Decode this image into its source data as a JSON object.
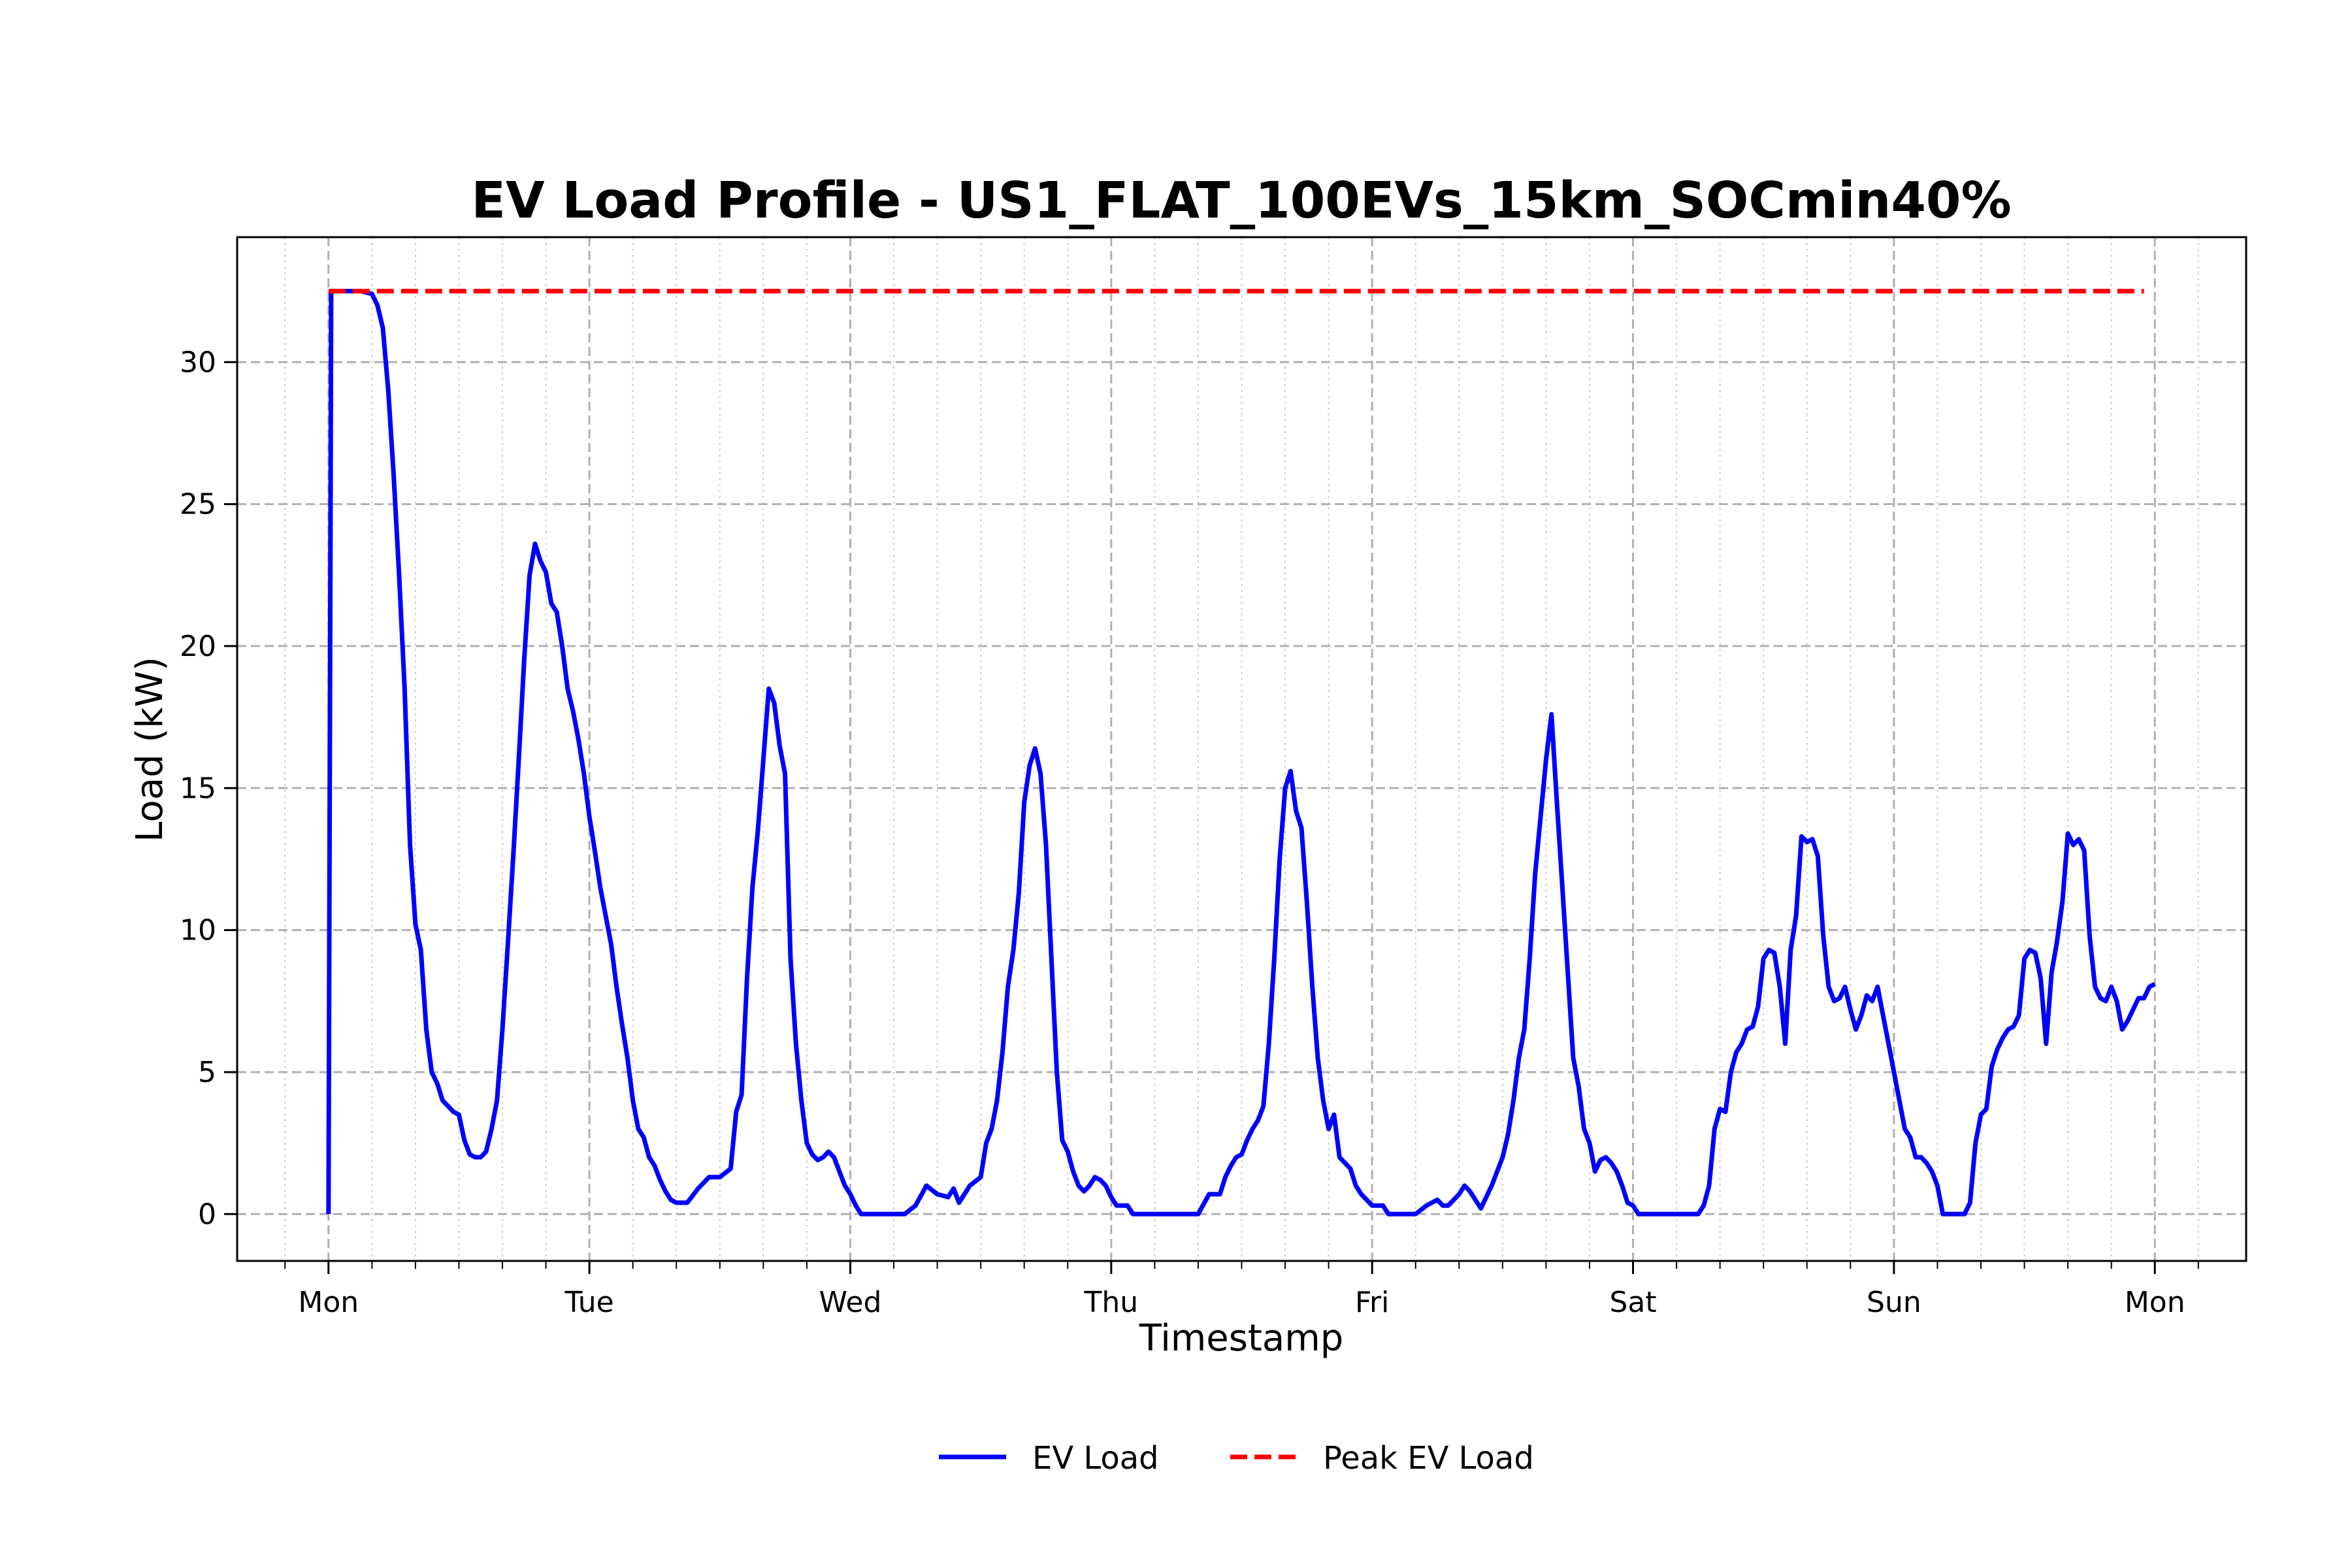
{
  "chart_data": {
    "type": "line",
    "title": "EV Load Profile - US1_FLAT_100EVs_15km_SOCmin40%",
    "xlabel": "Timestamp",
    "ylabel": "Load (kW)",
    "x_unit": "hours from Monday 00:00",
    "xlim": [
      -8.4,
      176.4
    ],
    "ylim": [
      -1.65,
      34.4
    ],
    "x_ticks": [
      {
        "x": 0,
        "label": "Mon"
      },
      {
        "x": 24,
        "label": "Tue"
      },
      {
        "x": 48,
        "label": "Wed"
      },
      {
        "x": 72,
        "label": "Thu"
      },
      {
        "x": 96,
        "label": "Fri"
      },
      {
        "x": 120,
        "label": "Sat"
      },
      {
        "x": 144,
        "label": "Sun"
      },
      {
        "x": 168,
        "label": "Mon"
      }
    ],
    "y_ticks": [
      0,
      5,
      10,
      15,
      20,
      25,
      30
    ],
    "grid": true,
    "legend_position": "bottom-center",
    "series": [
      {
        "name": "EV Load",
        "color": "#0000ff",
        "style": "solid",
        "points": [
          [
            0,
            0
          ],
          [
            0.25,
            32.5
          ],
          [
            1,
            32.5
          ],
          [
            2,
            32.5
          ],
          [
            3,
            32.5
          ],
          [
            4,
            32.4
          ],
          [
            4.5,
            32
          ],
          [
            5,
            31.2
          ],
          [
            5.5,
            29
          ],
          [
            6,
            26
          ],
          [
            6.5,
            22.5
          ],
          [
            7,
            18.5
          ],
          [
            7.5,
            13
          ],
          [
            8,
            10.2
          ],
          [
            8.5,
            9.3
          ],
          [
            9,
            6.5
          ],
          [
            9.5,
            5
          ],
          [
            10,
            4.6
          ],
          [
            10.5,
            4
          ],
          [
            11,
            3.8
          ],
          [
            11.5,
            3.6
          ],
          [
            12,
            3.5
          ],
          [
            12.5,
            2.6
          ],
          [
            13,
            2.1
          ],
          [
            13.5,
            2
          ],
          [
            14,
            2
          ],
          [
            14.5,
            2.2
          ],
          [
            15,
            3
          ],
          [
            15.5,
            4
          ],
          [
            16,
            6.5
          ],
          [
            16.5,
            9.5
          ],
          [
            17,
            12.6
          ],
          [
            17.5,
            16
          ],
          [
            18,
            19.5
          ],
          [
            18.5,
            22.5
          ],
          [
            19,
            23.6
          ],
          [
            19.5,
            23
          ],
          [
            20,
            22.6
          ],
          [
            20.5,
            21.5
          ],
          [
            21,
            21.2
          ],
          [
            21.5,
            20
          ],
          [
            22,
            18.5
          ],
          [
            22.5,
            17.7
          ],
          [
            23,
            16.7
          ],
          [
            23.5,
            15.5
          ],
          [
            24,
            14
          ],
          [
            24.5,
            12.8
          ],
          [
            25,
            11.5
          ],
          [
            25.5,
            10.5
          ],
          [
            26,
            9.5
          ],
          [
            26.5,
            8
          ],
          [
            27,
            6.7
          ],
          [
            27.5,
            5.5
          ],
          [
            28,
            4
          ],
          [
            28.5,
            3
          ],
          [
            29,
            2.7
          ],
          [
            29.5,
            2
          ],
          [
            30,
            1.7
          ],
          [
            30.5,
            1.2
          ],
          [
            31,
            0.8
          ],
          [
            31.5,
            0.5
          ],
          [
            32,
            0.4
          ],
          [
            33,
            0.4
          ],
          [
            34,
            0.9
          ],
          [
            35,
            1.3
          ],
          [
            36,
            1.3
          ],
          [
            37,
            1.6
          ],
          [
            37.5,
            3.6
          ],
          [
            38,
            4.2
          ],
          [
            38.5,
            8.3
          ],
          [
            39,
            11.5
          ],
          [
            39.5,
            13.5
          ],
          [
            40,
            16
          ],
          [
            40.5,
            18.5
          ],
          [
            41,
            18
          ],
          [
            41.5,
            16.5
          ],
          [
            42,
            15.5
          ],
          [
            42.5,
            9
          ],
          [
            43,
            6
          ],
          [
            43.5,
            4
          ],
          [
            44,
            2.5
          ],
          [
            44.5,
            2.1
          ],
          [
            45,
            1.9
          ],
          [
            45.5,
            2
          ],
          [
            46,
            2.2
          ],
          [
            46.5,
            2
          ],
          [
            47,
            1.5
          ],
          [
            47.5,
            1
          ],
          [
            48,
            0.7
          ],
          [
            48.5,
            0.3
          ],
          [
            49,
            0
          ],
          [
            50,
            0
          ],
          [
            51,
            0
          ],
          [
            52,
            0
          ],
          [
            53,
            0
          ],
          [
            54,
            0.3
          ],
          [
            55,
            1
          ],
          [
            56,
            0.7
          ],
          [
            57,
            0.6
          ],
          [
            57.5,
            0.9
          ],
          [
            58,
            0.4
          ],
          [
            59,
            1
          ],
          [
            60,
            1.3
          ],
          [
            60.5,
            2.5
          ],
          [
            61,
            3
          ],
          [
            61.5,
            4
          ],
          [
            62,
            5.7
          ],
          [
            62.5,
            8
          ],
          [
            63,
            9.3
          ],
          [
            63.5,
            11.3
          ],
          [
            64,
            14.5
          ],
          [
            64.5,
            15.8
          ],
          [
            65,
            16.4
          ],
          [
            65.5,
            15.5
          ],
          [
            66,
            13
          ],
          [
            66.5,
            9
          ],
          [
            67,
            5
          ],
          [
            67.5,
            2.6
          ],
          [
            68,
            2.2
          ],
          [
            68.5,
            1.5
          ],
          [
            69,
            1
          ],
          [
            69.5,
            0.8
          ],
          [
            70,
            1
          ],
          [
            70.5,
            1.3
          ],
          [
            71,
            1.2
          ],
          [
            71.5,
            1
          ],
          [
            72,
            0.6
          ],
          [
            72.5,
            0.3
          ],
          [
            73,
            0.3
          ],
          [
            73.5,
            0.3
          ],
          [
            74,
            0
          ],
          [
            76,
            0
          ],
          [
            78,
            0
          ],
          [
            79,
            0
          ],
          [
            80,
            0
          ],
          [
            81,
            0.7
          ],
          [
            82,
            0.7
          ],
          [
            82.5,
            1.3
          ],
          [
            83,
            1.7
          ],
          [
            83.5,
            2
          ],
          [
            84,
            2.1
          ],
          [
            84.5,
            2.6
          ],
          [
            85,
            3
          ],
          [
            85.5,
            3.3
          ],
          [
            86,
            3.8
          ],
          [
            86.5,
            6
          ],
          [
            87,
            9
          ],
          [
            87.5,
            12.5
          ],
          [
            88,
            15
          ],
          [
            88.5,
            15.6
          ],
          [
            89,
            14.2
          ],
          [
            89.5,
            13.6
          ],
          [
            90,
            11
          ],
          [
            90.5,
            8
          ],
          [
            91,
            5.5
          ],
          [
            91.5,
            4
          ],
          [
            92,
            3
          ],
          [
            92.5,
            3.5
          ],
          [
            93,
            2
          ],
          [
            93.5,
            1.8
          ],
          [
            94,
            1.6
          ],
          [
            94.5,
            1
          ],
          [
            95,
            0.7
          ],
          [
            95.5,
            0.5
          ],
          [
            96,
            0.3
          ],
          [
            97,
            0.3
          ],
          [
            97.5,
            0
          ],
          [
            98,
            0
          ],
          [
            100,
            0
          ],
          [
            101,
            0.3
          ],
          [
            102,
            0.5
          ],
          [
            102.5,
            0.3
          ],
          [
            103,
            0.3
          ],
          [
            104,
            0.7
          ],
          [
            104.5,
            1
          ],
          [
            105,
            0.8
          ],
          [
            105.5,
            0.5
          ],
          [
            106,
            0.2
          ],
          [
            106.5,
            0.6
          ],
          [
            107,
            1
          ],
          [
            107.5,
            1.5
          ],
          [
            108,
            2
          ],
          [
            108.5,
            2.8
          ],
          [
            109,
            4
          ],
          [
            109.5,
            5.5
          ],
          [
            110,
            6.5
          ],
          [
            110.5,
            9
          ],
          [
            111,
            12
          ],
          [
            111.5,
            14
          ],
          [
            112,
            16
          ],
          [
            112.5,
            17.6
          ],
          [
            113,
            14.5
          ],
          [
            113.5,
            11.5
          ],
          [
            114,
            8.5
          ],
          [
            114.5,
            5.5
          ],
          [
            115,
            4.5
          ],
          [
            115.5,
            3
          ],
          [
            116,
            2.5
          ],
          [
            116.5,
            1.5
          ],
          [
            117,
            1.9
          ],
          [
            117.5,
            2
          ],
          [
            118,
            1.8
          ],
          [
            118.5,
            1.5
          ],
          [
            119,
            1
          ],
          [
            119.5,
            0.4
          ],
          [
            120,
            0.3
          ],
          [
            120.5,
            0
          ],
          [
            121,
            0
          ],
          [
            122,
            0
          ],
          [
            123,
            0
          ],
          [
            124,
            0
          ],
          [
            125,
            0
          ],
          [
            126,
            0
          ],
          [
            126.5,
            0.3
          ],
          [
            127,
            1
          ],
          [
            127.5,
            3
          ],
          [
            128,
            3.7
          ],
          [
            128.5,
            3.6
          ],
          [
            129,
            5
          ],
          [
            129.5,
            5.7
          ],
          [
            130,
            6
          ],
          [
            130.5,
            6.5
          ],
          [
            131,
            6.6
          ],
          [
            131.5,
            7.3
          ],
          [
            132,
            9
          ],
          [
            132.5,
            9.3
          ],
          [
            133,
            9.2
          ],
          [
            133.5,
            8
          ],
          [
            134,
            6
          ],
          [
            134.5,
            9.3
          ],
          [
            135,
            10.5
          ],
          [
            135.5,
            13.3
          ],
          [
            136,
            13.1
          ],
          [
            136.5,
            13.2
          ],
          [
            137,
            12.6
          ],
          [
            137.5,
            9.8
          ],
          [
            138,
            8
          ],
          [
            138.5,
            7.5
          ],
          [
            139,
            7.6
          ],
          [
            139.5,
            8
          ],
          [
            140,
            7.2
          ],
          [
            140.5,
            6.5
          ],
          [
            141,
            7
          ],
          [
            141.5,
            7.7
          ],
          [
            142,
            7.5
          ],
          [
            142.5,
            8
          ],
          [
            143,
            7
          ],
          [
            143.5,
            6
          ],
          [
            144,
            5
          ],
          [
            144.5,
            4
          ],
          [
            145,
            3
          ],
          [
            145.5,
            2.7
          ],
          [
            146,
            2
          ],
          [
            146.5,
            2
          ],
          [
            147,
            1.8
          ],
          [
            147.5,
            1.5
          ],
          [
            148,
            1
          ],
          [
            148.5,
            0
          ],
          [
            149,
            0
          ],
          [
            150,
            0
          ],
          [
            150.5,
            0
          ],
          [
            151,
            0.4
          ],
          [
            151.5,
            2.5
          ],
          [
            152,
            3.5
          ],
          [
            152.5,
            3.7
          ],
          [
            153,
            5.2
          ],
          [
            153.5,
            5.8
          ],
          [
            154,
            6.2
          ],
          [
            154.5,
            6.5
          ],
          [
            155,
            6.6
          ],
          [
            155.5,
            7
          ],
          [
            156,
            9
          ],
          [
            156.5,
            9.3
          ],
          [
            157,
            9.2
          ],
          [
            157.5,
            8.3
          ],
          [
            158,
            6
          ],
          [
            158.5,
            8.5
          ],
          [
            159,
            9.6
          ],
          [
            159.5,
            11
          ],
          [
            160,
            13.4
          ],
          [
            160.5,
            13
          ],
          [
            161,
            13.2
          ],
          [
            161.5,
            12.8
          ],
          [
            162,
            9.8
          ],
          [
            162.5,
            8
          ],
          [
            163,
            7.6
          ],
          [
            163.5,
            7.5
          ],
          [
            164,
            8
          ],
          [
            164.5,
            7.5
          ],
          [
            165,
            6.5
          ],
          [
            165.5,
            6.8
          ],
          [
            166,
            7.2
          ],
          [
            166.5,
            7.6
          ],
          [
            167,
            7.6
          ],
          [
            167.5,
            8
          ],
          [
            168,
            8.1
          ]
        ]
      },
      {
        "name": "Peak EV Load",
        "color": "#ff0000",
        "style": "dashed",
        "points": [
          [
            0,
            32.5
          ],
          [
            167,
            32.5
          ]
        ]
      }
    ]
  }
}
